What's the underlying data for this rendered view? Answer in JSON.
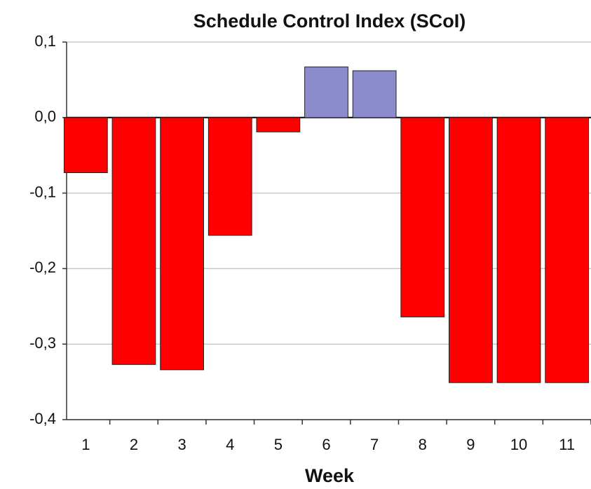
{
  "chart_data": {
    "type": "bar",
    "title": "Schedule Control Index (SCoI)",
    "x_label": "Week",
    "categories": [
      "1",
      "2",
      "3",
      "4",
      "5",
      "6",
      "7",
      "8",
      "9",
      "10",
      "11"
    ],
    "values": [
      -0.073,
      -0.327,
      -0.334,
      -0.156,
      -0.019,
      0.067,
      0.062,
      -0.264,
      -0.351,
      -0.351,
      -0.351
    ],
    "colors": [
      "#ff0000",
      "#ff0000",
      "#ff0000",
      "#ff0000",
      "#ff0000",
      "#8c8ccc",
      "#8c8ccc",
      "#ff0000",
      "#ff0000",
      "#ff0000",
      "#ff0000"
    ],
    "ylim": [
      -0.4,
      0.1
    ],
    "yticks": [
      {
        "value": -0.4,
        "label": "-0,4"
      },
      {
        "value": -0.3,
        "label": "-0,3"
      },
      {
        "value": -0.2,
        "label": "-0,2"
      },
      {
        "value": -0.1,
        "label": "-0,1"
      },
      {
        "value": 0,
        "label": "0,0"
      },
      {
        "value": 0.1,
        "label": "0,1"
      }
    ],
    "grid": true
  }
}
